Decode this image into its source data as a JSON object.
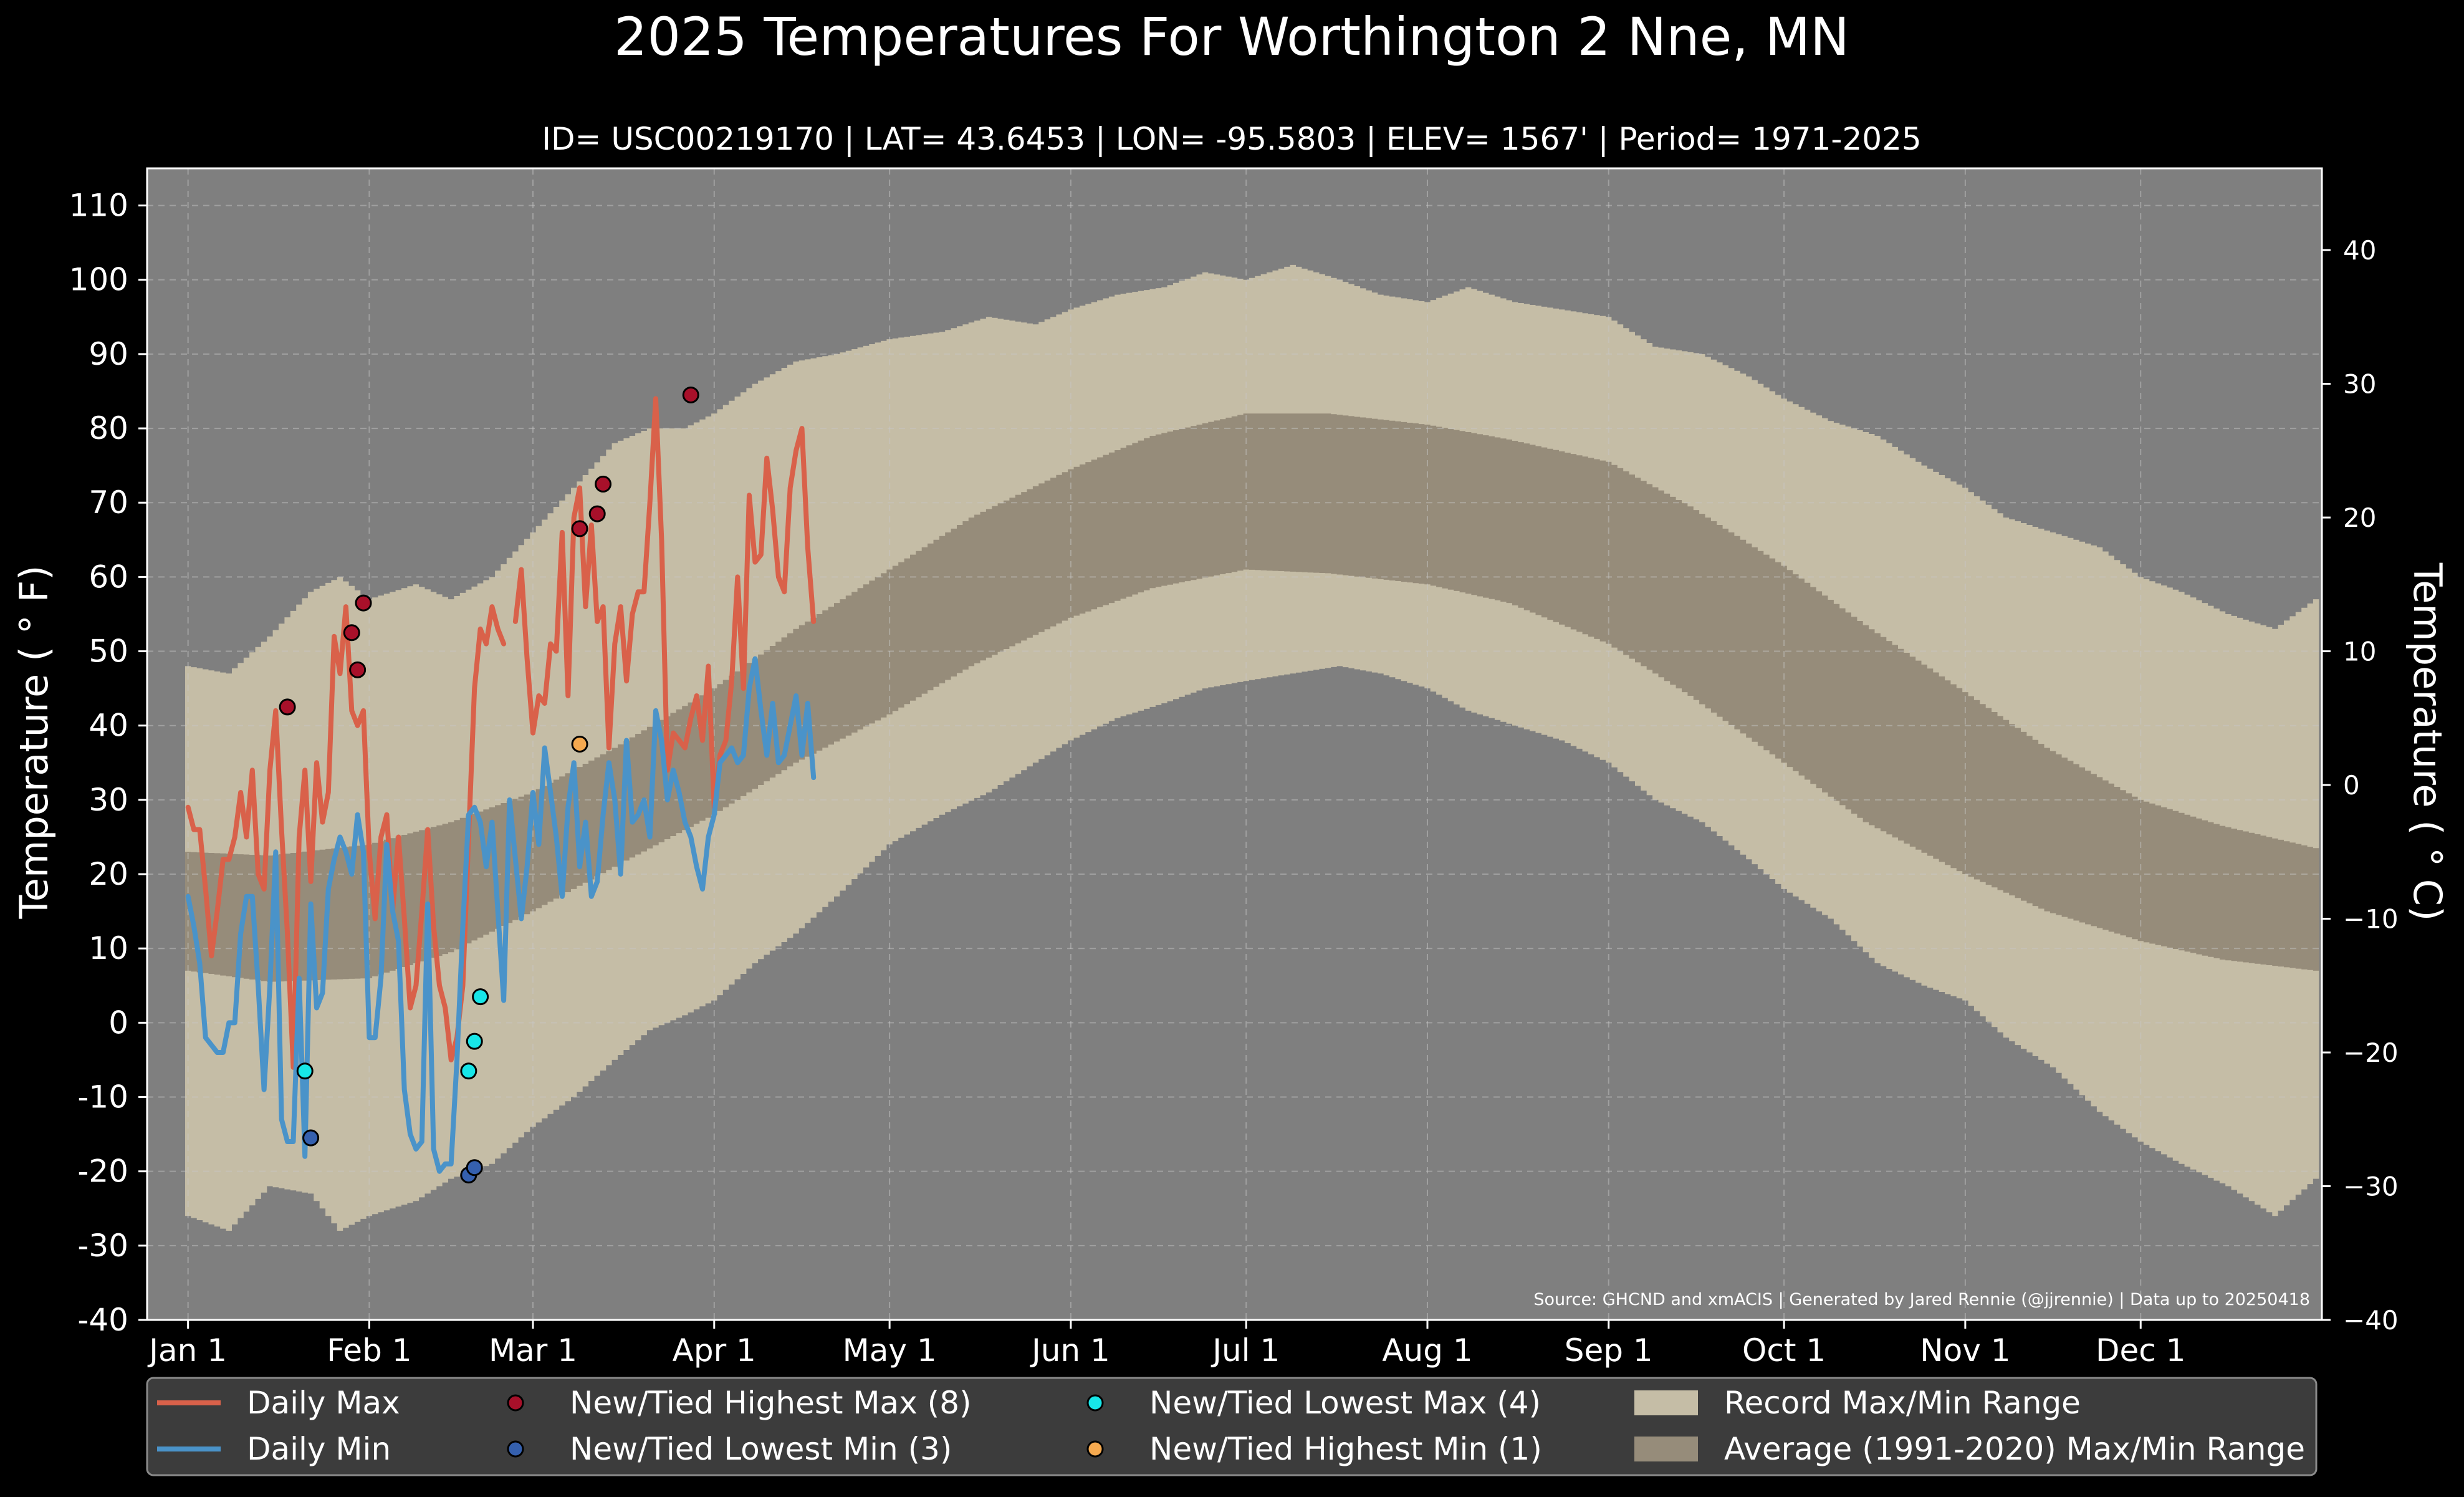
{
  "chart_data": {
    "type": "line",
    "title": "2025 Temperatures For Worthington 2 Nne, MN",
    "subtitle": "ID= USC00219170 | LAT= 43.6453 | LON= -95.5803 | ELEV= 1567' | Period= 1971-2025",
    "ylabel_left": "Temperature ($^\\circ$F)",
    "ylabel_left_display": "Temperature ( ° F)",
    "ylabel_right_display": "Temperature ( ° C)",
    "source_note": "Source: GHCND and xmACIS | Generated by Jared Rennie (@jjrennie) | Data up to 20250418",
    "xlim_day": [
      1,
      365
    ],
    "ylim_f": [
      -40,
      115
    ],
    "y_ticks_f": [
      -40,
      -30,
      -20,
      -10,
      0,
      10,
      20,
      30,
      40,
      50,
      60,
      70,
      80,
      90,
      100,
      110
    ],
    "y_ticks_f_labels": [
      "-40",
      "-30",
      "-20",
      "-10",
      "0",
      "10",
      "20",
      "30",
      "40",
      "50",
      "60",
      "70",
      "80",
      "90",
      "100",
      "110"
    ],
    "y_ticks_c": [
      -40,
      -30,
      -20,
      -10,
      0,
      10,
      20,
      30,
      40
    ],
    "y_ticks_c_labels": [
      "−40",
      "−30",
      "−20",
      "−10",
      "0",
      "10",
      "20",
      "30",
      "40"
    ],
    "x_ticks": [
      {
        "label": "Jan 1",
        "day": 1
      },
      {
        "label": "Feb 1",
        "day": 32
      },
      {
        "label": "Mar 1",
        "day": 60
      },
      {
        "label": "Apr 1",
        "day": 91
      },
      {
        "label": "May 1",
        "day": 121
      },
      {
        "label": "Jun 1",
        "day": 152
      },
      {
        "label": "Jul 1",
        "day": 182
      },
      {
        "label": "Aug 1",
        "day": 213
      },
      {
        "label": "Sep 1",
        "day": 244
      },
      {
        "label": "Oct 1",
        "day": 274
      },
      {
        "label": "Nov 1",
        "day": 305
      },
      {
        "label": "Dec 1",
        "day": 335
      }
    ],
    "grid": true,
    "legend_position": "bottom",
    "normals": {
      "max_day": [
        1,
        15,
        32,
        46,
        60,
        74,
        91,
        105,
        121,
        135,
        152,
        166,
        182,
        196,
        213,
        227,
        244,
        258,
        274,
        288,
        305,
        319,
        335,
        349,
        365
      ],
      "max_f": [
        23,
        22.5,
        24,
        27,
        31,
        37,
        45,
        53,
        61,
        68,
        74.5,
        79,
        82,
        82,
        80.5,
        78.5,
        75.5,
        69.5,
        61.5,
        53.5,
        44.5,
        37,
        30,
        26.5,
        23.5
      ],
      "min_day": [
        1,
        15,
        32,
        46,
        60,
        74,
        91,
        105,
        121,
        135,
        152,
        166,
        182,
        196,
        213,
        227,
        244,
        258,
        274,
        288,
        305,
        319,
        335,
        349,
        365
      ],
      "min_f": [
        7,
        5.5,
        6,
        9.5,
        15,
        21,
        28,
        35,
        41.5,
        48,
        54.5,
        58.5,
        61,
        60.5,
        59,
        56.5,
        51,
        44,
        35,
        27,
        20,
        15,
        11,
        8.5,
        7
      ]
    },
    "records": {
      "max_day": [
        1,
        8,
        15,
        22,
        27,
        32,
        40,
        46,
        53,
        60,
        67,
        74,
        80,
        86,
        91,
        98,
        105,
        112,
        121,
        130,
        138,
        146,
        152,
        160,
        168,
        175,
        182,
        190,
        198,
        205,
        213,
        220,
        228,
        236,
        244,
        252,
        260,
        268,
        274,
        282,
        290,
        298,
        305,
        312,
        320,
        328,
        335,
        342,
        350,
        358,
        365
      ],
      "max_f": [
        48,
        47,
        52,
        58,
        60,
        57,
        59,
        57,
        60,
        66,
        72,
        78,
        80,
        80,
        82,
        86,
        89,
        90,
        92,
        93,
        95,
        94,
        96,
        98,
        99,
        101,
        100,
        102,
        100,
        98,
        97,
        99,
        97,
        96,
        95,
        91,
        90,
        87,
        84,
        81,
        79,
        75,
        72,
        68,
        66,
        64,
        60,
        58,
        55,
        53,
        57
      ],
      "min_day": [
        1,
        8,
        15,
        22,
        27,
        32,
        40,
        46,
        53,
        60,
        67,
        74,
        80,
        86,
        91,
        98,
        105,
        112,
        121,
        130,
        138,
        146,
        152,
        160,
        168,
        175,
        182,
        190,
        198,
        205,
        213,
        220,
        228,
        236,
        244,
        252,
        260,
        268,
        274,
        282,
        290,
        298,
        305,
        312,
        320,
        328,
        335,
        342,
        350,
        358,
        365
      ],
      "min_f": [
        -26,
        -28,
        -22,
        -23,
        -28,
        -26,
        -24,
        -21,
        -19,
        -14,
        -10,
        -5,
        -1,
        1,
        3,
        8,
        12,
        17,
        24,
        28,
        31,
        35,
        38,
        41,
        43,
        45,
        46,
        47,
        48,
        47,
        45,
        42,
        40,
        38,
        35,
        30,
        27,
        22,
        18,
        14,
        8,
        5,
        3,
        -2,
        -6,
        -12,
        -16,
        -19,
        -22,
        -26,
        -21
      ]
    },
    "series": [
      {
        "name": "Daily Max",
        "color": "#d9614a",
        "x": [
          1,
          2,
          3,
          4,
          5,
          6,
          7,
          8,
          9,
          10,
          11,
          12,
          13,
          14,
          15,
          16,
          17,
          18,
          19,
          20,
          21,
          22,
          23,
          24,
          25,
          26,
          27,
          28,
          29,
          30,
          31,
          32,
          33,
          34,
          35,
          36,
          37,
          38,
          39,
          40,
          41,
          42,
          43,
          44,
          45,
          46,
          47,
          48,
          49,
          50,
          51,
          52,
          53,
          54,
          55,
          56,
          57,
          58,
          59,
          60,
          61,
          62,
          63,
          64,
          65,
          66,
          67,
          68,
          69,
          70,
          71,
          72,
          73,
          74,
          75,
          76,
          77,
          78,
          79,
          80,
          81,
          82,
          83,
          84,
          85,
          86,
          87,
          88,
          89,
          90,
          91,
          92,
          93,
          94,
          95,
          96,
          97,
          98,
          99,
          100,
          101,
          102,
          103,
          104,
          105,
          106,
          107,
          108
        ],
        "values": [
          29,
          26,
          26,
          18,
          9,
          15,
          22,
          22,
          25,
          31,
          25,
          34,
          20,
          18,
          34,
          42,
          26,
          12,
          -6,
          25,
          34,
          19,
          35,
          27,
          31,
          52,
          47,
          56,
          42,
          40,
          42,
          23,
          14,
          25,
          28,
          15,
          25,
          14,
          2,
          5,
          15,
          26,
          13,
          5,
          2,
          -5,
          -2,
          5,
          25,
          45,
          53,
          51,
          56,
          53,
          51,
          null,
          54,
          61,
          49,
          39,
          44,
          43,
          51,
          50,
          66,
          44,
          68,
          72,
          56,
          67,
          54,
          56,
          37,
          51,
          56,
          46,
          55,
          58,
          58,
          70,
          84,
          65,
          34,
          39,
          38,
          37,
          41,
          44,
          38,
          48,
          29,
          36,
          38,
          46,
          60,
          45,
          71,
          62,
          63,
          76,
          69,
          60,
          58,
          72,
          77,
          80,
          64,
          54
        ]
      },
      {
        "name": "Daily Min",
        "color": "#4a93c9",
        "x": [
          1,
          2,
          3,
          4,
          5,
          6,
          7,
          8,
          9,
          10,
          11,
          12,
          13,
          14,
          15,
          16,
          17,
          18,
          19,
          20,
          21,
          22,
          23,
          24,
          25,
          26,
          27,
          28,
          29,
          30,
          31,
          32,
          33,
          34,
          35,
          36,
          37,
          38,
          39,
          40,
          41,
          42,
          43,
          44,
          45,
          46,
          47,
          48,
          49,
          50,
          51,
          52,
          53,
          54,
          55,
          56,
          57,
          58,
          59,
          60,
          61,
          62,
          63,
          64,
          65,
          66,
          67,
          68,
          69,
          70,
          71,
          72,
          73,
          74,
          75,
          76,
          77,
          78,
          79,
          80,
          81,
          82,
          83,
          84,
          85,
          86,
          87,
          88,
          89,
          90,
          91,
          92,
          93,
          94,
          95,
          96,
          97,
          98,
          99,
          100,
          101,
          102,
          103,
          104,
          105,
          106,
          107,
          108
        ],
        "values": [
          17,
          13,
          8,
          -2,
          -3,
          -4,
          -4,
          0,
          0,
          12,
          17,
          17,
          5,
          -9,
          5,
          23,
          -13,
          -16,
          -16,
          6,
          -18,
          16,
          2,
          4,
          18,
          22,
          25,
          23,
          20,
          28,
          23,
          -2,
          -2,
          6,
          24,
          15,
          11,
          -9,
          -15,
          -17,
          -16,
          16,
          -17,
          -20,
          -19,
          -19,
          -5,
          13,
          28,
          29,
          27,
          21,
          27,
          15,
          3,
          30,
          22,
          14,
          21,
          31,
          24,
          37,
          31,
          25,
          17,
          29,
          35,
          21,
          27,
          17,
          19,
          28,
          35,
          30,
          20,
          38,
          27,
          28,
          30,
          25,
          42,
          38,
          30,
          34,
          31,
          27,
          25,
          21,
          18,
          25,
          28,
          35,
          36,
          37,
          35,
          36,
          45,
          49,
          42,
          36,
          43,
          35,
          36,
          40,
          44,
          36,
          43,
          33
        ]
      }
    ],
    "marker_groups": [
      {
        "name": "New/Tied Highest Max (8)",
        "color": "#a8102a",
        "points": [
          {
            "x": 18,
            "y": 42.5
          },
          {
            "x": 29,
            "y": 52.5
          },
          {
            "x": 30,
            "y": 47.5
          },
          {
            "x": 31,
            "y": 56.5
          },
          {
            "x": 68,
            "y": 66.5
          },
          {
            "x": 71,
            "y": 68.5
          },
          {
            "x": 72,
            "y": 72.5
          },
          {
            "x": 87,
            "y": 84.5
          }
        ]
      },
      {
        "name": "New/Tied Lowest Min (3)",
        "color": "#3560ae",
        "points": [
          {
            "x": 22,
            "y": -15.5
          },
          {
            "x": 49,
            "y": -20.5
          },
          {
            "x": 50,
            "y": -19.5
          }
        ]
      },
      {
        "name": "New/Tied Lowest Max (4)",
        "color": "#17e6e8",
        "points": [
          {
            "x": 21,
            "y": -6.5
          },
          {
            "x": 49,
            "y": -6.5
          },
          {
            "x": 50,
            "y": -2.5
          },
          {
            "x": 51,
            "y": 3.5
          }
        ]
      },
      {
        "name": "New/Tied Highest Min (1)",
        "color": "#f5a94f",
        "points": [
          {
            "x": 68,
            "y": 37.5
          }
        ]
      }
    ],
    "legend": [
      {
        "label": "Daily Max",
        "kind": "line",
        "color": "#d9614a"
      },
      {
        "label": "Daily Min",
        "kind": "line",
        "color": "#4a93c9"
      },
      {
        "label": "New/Tied Highest Max (8)",
        "kind": "marker",
        "color": "#a8102a"
      },
      {
        "label": "New/Tied Lowest Min (3)",
        "kind": "marker",
        "color": "#3560ae"
      },
      {
        "label": "New/Tied Lowest Max (4)",
        "kind": "marker",
        "color": "#17e6e8"
      },
      {
        "label": "New/Tied Highest Min (1)",
        "kind": "marker",
        "color": "#f5a94f"
      },
      {
        "label": "Record Max/Min Range",
        "kind": "patch",
        "color": "#c5bda6"
      },
      {
        "label": "Average (1991-2020) Max/Min Range",
        "kind": "patch",
        "color": "#968c7a"
      }
    ],
    "colors": {
      "background": "#000000",
      "plot_background": "#7f7f7f",
      "record_range": "#c5bda6",
      "normal_range": "#968c7a",
      "legend_background": "#3c3c3c",
      "text": "#ffffff"
    }
  }
}
